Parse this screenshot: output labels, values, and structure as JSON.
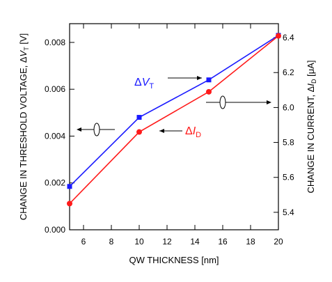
{
  "chart_data": {
    "type": "line",
    "x": [
      5,
      10,
      15,
      20
    ],
    "xlabel": "QW THICKNESS [nm]",
    "xlim": [
      5,
      20
    ],
    "xticks": [
      "6",
      "8",
      "10",
      "12",
      "14",
      "16",
      "18",
      "20"
    ],
    "y_left": {
      "label_prefix": "CHANGE IN THRESHOLD VOLTAGE, Δ",
      "label_var": "V",
      "label_sub": "T",
      "label_suffix": " [V]",
      "lim": [
        0.0,
        0.0088
      ],
      "ticks": [
        "0.000",
        "0.002",
        "0.004",
        "0.006",
        "0.008"
      ]
    },
    "y_right": {
      "label_prefix": "CHANGE IN CURRENT, Δ",
      "label_var": "I",
      "label_sub": "D",
      "label_suffix": " [μA]",
      "lim": [
        5.3,
        6.48
      ],
      "ticks": [
        "5.4",
        "5.6",
        "5.8",
        "6.0",
        "6.2",
        "6.4"
      ]
    },
    "series": [
      {
        "label_prefix": "Δ",
        "label_var": "V",
        "label_sub": "T",
        "axis": "left",
        "color": "#1a1aff",
        "marker": "square",
        "values": [
          0.00185,
          0.0048,
          0.0064,
          0.0083
        ]
      },
      {
        "label_prefix": "Δ",
        "label_var": "I",
        "label_sub": "D",
        "axis": "right",
        "color": "#ff1a1a",
        "marker": "circle",
        "values": [
          5.45,
          5.86,
          6.09,
          6.41
        ]
      }
    ]
  }
}
